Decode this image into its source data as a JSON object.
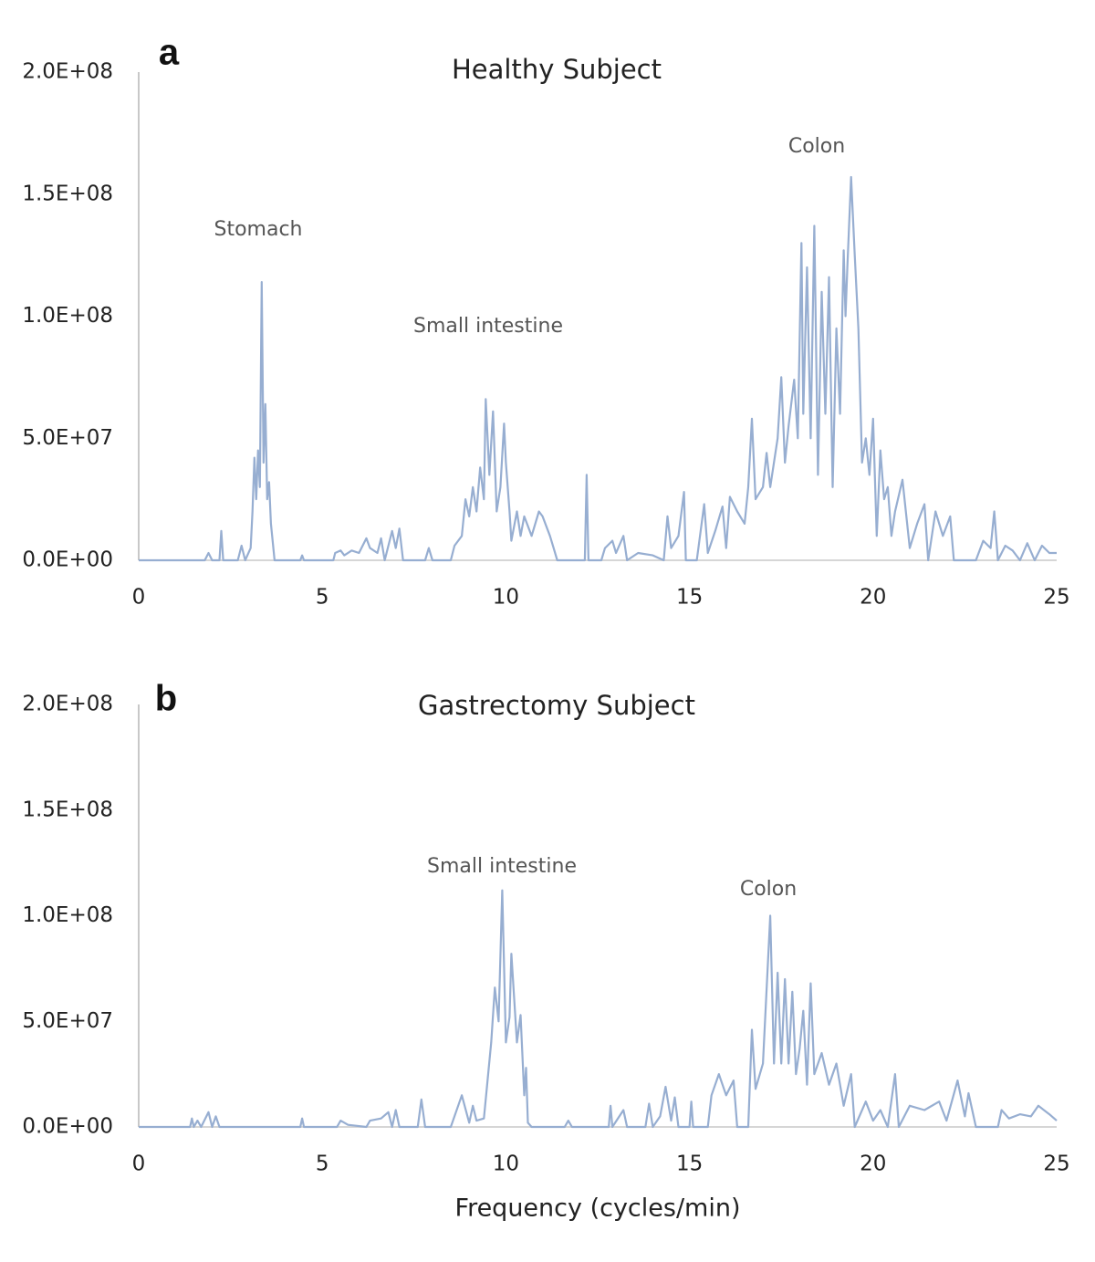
{
  "chart_data": [
    {
      "type": "line",
      "panel": "a",
      "title": "Healthy Subject",
      "annotations": [
        "Stomach",
        "Small intestine",
        "Colon"
      ],
      "xlim": [
        0,
        25
      ],
      "xticks": [
        0,
        5,
        10,
        15,
        20,
        25
      ],
      "ylim": [
        0,
        200000000.0
      ],
      "yticks": [
        {
          "value": 0,
          "label": "0.0E+00"
        },
        {
          "value": 50000000.0,
          "label": "5.0E+07"
        },
        {
          "value": 100000000.0,
          "label": "1.0E+08"
        },
        {
          "value": 150000000.0,
          "label": "1.5E+08"
        },
        {
          "value": 200000000.0,
          "label": "2.0E+08"
        }
      ],
      "series": [
        {
          "color": "#97aed1",
          "x": [
            0,
            1.8,
            1.9,
            2.0,
            2.2,
            2.25,
            2.3,
            2.7,
            2.8,
            2.9,
            3.05,
            3.1,
            3.15,
            3.2,
            3.25,
            3.3,
            3.35,
            3.4,
            3.45,
            3.5,
            3.55,
            3.6,
            3.7,
            4.4,
            4.45,
            4.5,
            5.3,
            5.35,
            5.5,
            5.6,
            5.8,
            6.0,
            6.2,
            6.3,
            6.5,
            6.6,
            6.7,
            6.9,
            7.0,
            7.1,
            7.2,
            7.8,
            7.9,
            8.0,
            8.5,
            8.6,
            8.8,
            8.9,
            9.0,
            9.1,
            9.2,
            9.3,
            9.4,
            9.45,
            9.55,
            9.65,
            9.75,
            9.85,
            9.95,
            10.0,
            10.1,
            10.15,
            10.3,
            10.4,
            10.5,
            10.7,
            10.9,
            11.0,
            11.2,
            11.3,
            11.4,
            12.15,
            12.2,
            12.25,
            12.6,
            12.7,
            12.9,
            13.0,
            13.2,
            13.3,
            13.6,
            14.0,
            14.3,
            14.4,
            14.5,
            14.7,
            14.85,
            14.9,
            15.2,
            15.4,
            15.5,
            15.7,
            15.9,
            16.0,
            16.1,
            16.3,
            16.5,
            16.6,
            16.7,
            16.8,
            17.0,
            17.1,
            17.2,
            17.4,
            17.5,
            17.6,
            17.7,
            17.85,
            17.95,
            18.05,
            18.1,
            18.2,
            18.3,
            18.4,
            18.5,
            18.6,
            18.7,
            18.8,
            18.9,
            19.0,
            19.1,
            19.2,
            19.25,
            19.3,
            19.4,
            19.5,
            19.6,
            19.7,
            19.8,
            19.9,
            20.0,
            20.1,
            20.2,
            20.3,
            20.4,
            20.5,
            20.6,
            20.8,
            21.0,
            21.2,
            21.4,
            21.5,
            21.7,
            21.9,
            22.1,
            22.2,
            22.8,
            23.0,
            23.2,
            23.3,
            23.4,
            23.6,
            23.8,
            24.0,
            24.2,
            24.4,
            24.6,
            24.8,
            25.0
          ],
          "values": [
            0,
            0,
            3000000.0,
            0,
            0,
            12000000.0,
            0,
            0,
            6000000.0,
            0,
            5000000.0,
            20000000.0,
            42000000.0,
            25000000.0,
            45000000.0,
            30000000.0,
            114000000.0,
            40000000.0,
            64000000.0,
            25000000.0,
            32000000.0,
            15000000.0,
            0,
            0,
            2000000.0,
            0,
            0,
            3000000.0,
            4000000.0,
            2000000.0,
            4000000.0,
            3000000.0,
            9000000.0,
            5000000.0,
            3000000.0,
            9000000.0,
            0,
            12000000.0,
            5000000.0,
            13000000.0,
            0,
            0,
            5000000.0,
            0,
            0,
            6000000.0,
            10000000.0,
            25000000.0,
            18000000.0,
            30000000.0,
            20000000.0,
            38000000.0,
            25000000.0,
            66000000.0,
            35000000.0,
            61000000.0,
            20000000.0,
            30000000.0,
            56000000.0,
            40000000.0,
            20000000.0,
            8000000.0,
            20000000.0,
            10000000.0,
            18000000.0,
            10000000.0,
            20000000.0,
            18000000.0,
            10000000.0,
            5000000.0,
            0,
            0,
            35000000.0,
            0,
            0,
            5000000.0,
            8000000.0,
            3000000.0,
            10000000.0,
            0,
            3000000.0,
            2000000.0,
            0,
            18000000.0,
            5000000.0,
            10000000.0,
            28000000.0,
            0,
            0,
            23000000.0,
            3000000.0,
            12000000.0,
            22000000.0,
            5000000.0,
            26000000.0,
            20000000.0,
            15000000.0,
            30000000.0,
            58000000.0,
            25000000.0,
            30000000.0,
            44000000.0,
            30000000.0,
            50000000.0,
            75000000.0,
            40000000.0,
            55000000.0,
            74000000.0,
            50000000.0,
            130000000.0,
            60000000.0,
            120000000.0,
            50000000.0,
            137000000.0,
            35000000.0,
            110000000.0,
            60000000.0,
            116000000.0,
            30000000.0,
            95000000.0,
            60000000.0,
            127000000.0,
            100000000.0,
            120000000.0,
            157000000.0,
            125000000.0,
            95000000.0,
            40000000.0,
            50000000.0,
            35000000.0,
            58000000.0,
            10000000.0,
            45000000.0,
            25000000.0,
            30000000.0,
            10000000.0,
            20000000.0,
            33000000.0,
            5000000.0,
            15000000.0,
            23000000.0,
            0,
            20000000.0,
            10000000.0,
            18000000.0,
            0,
            0,
            8000000.0,
            5000000.0,
            20000000.0,
            0,
            6000000.0,
            4000000.0,
            0,
            7000000.0,
            0,
            6000000.0,
            3000000.0,
            3000000.0
          ]
        }
      ]
    },
    {
      "type": "line",
      "panel": "b",
      "title": "Gastrectomy Subject",
      "xlabel": "Frequency (cycles/min)",
      "annotations": [
        "Small intestine",
        "Colon"
      ],
      "xlim": [
        0,
        25
      ],
      "xticks": [
        0,
        5,
        10,
        15,
        20,
        25
      ],
      "ylim": [
        0,
        200000000.0
      ],
      "yticks": [
        {
          "value": 0,
          "label": "0.0E+00"
        },
        {
          "value": 50000000.0,
          "label": "5.0E+07"
        },
        {
          "value": 100000000.0,
          "label": "1.0E+08"
        },
        {
          "value": 150000000.0,
          "label": "1.5E+08"
        },
        {
          "value": 200000000.0,
          "label": "2.0E+08"
        }
      ],
      "series": [
        {
          "color": "#97aed1",
          "x": [
            0,
            1.4,
            1.45,
            1.5,
            1.6,
            1.7,
            1.9,
            2.0,
            2.1,
            2.2,
            4.4,
            4.45,
            4.5,
            5.4,
            5.5,
            5.7,
            6.2,
            6.3,
            6.6,
            6.8,
            6.9,
            7.0,
            7.1,
            7.6,
            7.7,
            7.8,
            8.5,
            8.7,
            8.8,
            9.0,
            9.1,
            9.2,
            9.4,
            9.5,
            9.6,
            9.7,
            9.8,
            9.9,
            10.0,
            10.1,
            10.15,
            10.3,
            10.4,
            10.5,
            10.55,
            10.6,
            10.7,
            11.6,
            11.7,
            11.8,
            12.8,
            12.85,
            12.9,
            13.2,
            13.3,
            13.8,
            13.9,
            14.0,
            14.2,
            14.35,
            14.5,
            14.6,
            14.7,
            15.0,
            15.05,
            15.1,
            15.5,
            15.6,
            15.8,
            16.0,
            16.2,
            16.3,
            16.6,
            16.7,
            16.8,
            17.0,
            17.2,
            17.3,
            17.4,
            17.5,
            17.6,
            17.7,
            17.8,
            17.9,
            18.0,
            18.1,
            18.2,
            18.3,
            18.4,
            18.6,
            18.8,
            19.0,
            19.2,
            19.4,
            19.5,
            19.8,
            20.0,
            20.2,
            20.4,
            20.6,
            20.7,
            21.0,
            21.4,
            21.8,
            22.0,
            22.3,
            22.5,
            22.6,
            22.8,
            23.4,
            23.5,
            23.7,
            24.0,
            24.3,
            24.5,
            24.8,
            25.0
          ],
          "values": [
            0,
            0,
            4000000.0,
            0,
            3000000.0,
            0,
            7000000.0,
            0,
            5000000.0,
            0,
            0,
            4000000.0,
            0,
            0,
            3000000.0,
            1000000.0,
            0,
            3000000.0,
            4000000.0,
            7000000.0,
            0,
            8000000.0,
            0,
            0,
            13000000.0,
            0,
            0,
            10000000.0,
            15000000.0,
            2000000.0,
            10000000.0,
            3000000.0,
            4000000.0,
            22000000.0,
            40000000.0,
            66000000.0,
            50000000.0,
            112000000.0,
            40000000.0,
            52000000.0,
            82000000.0,
            40000000.0,
            53000000.0,
            15000000.0,
            28000000.0,
            2000000.0,
            0,
            0,
            3000000.0,
            0,
            0,
            10000000.0,
            0,
            8000000.0,
            0,
            0,
            11000000.0,
            0,
            5000000.0,
            19000000.0,
            3000000.0,
            14000000.0,
            0,
            0,
            12000000.0,
            0,
            0,
            15000000.0,
            25000000.0,
            15000000.0,
            22000000.0,
            0,
            0,
            46000000.0,
            18000000.0,
            30000000.0,
            100000000.0,
            30000000.0,
            73000000.0,
            30000000.0,
            70000000.0,
            30000000.0,
            64000000.0,
            25000000.0,
            37000000.0,
            55000000.0,
            20000000.0,
            68000000.0,
            25000000.0,
            35000000.0,
            20000000.0,
            30000000.0,
            10000000.0,
            25000000.0,
            0,
            12000000.0,
            3000000.0,
            8000000.0,
            0,
            25000000.0,
            0,
            10000000.0,
            8000000.0,
            12000000.0,
            3000000.0,
            22000000.0,
            5000000.0,
            16000000.0,
            0,
            0,
            8000000.0,
            4000000.0,
            6000000.0,
            5000000.0,
            10000000.0,
            6000000.0,
            3000000.0
          ]
        }
      ]
    }
  ]
}
